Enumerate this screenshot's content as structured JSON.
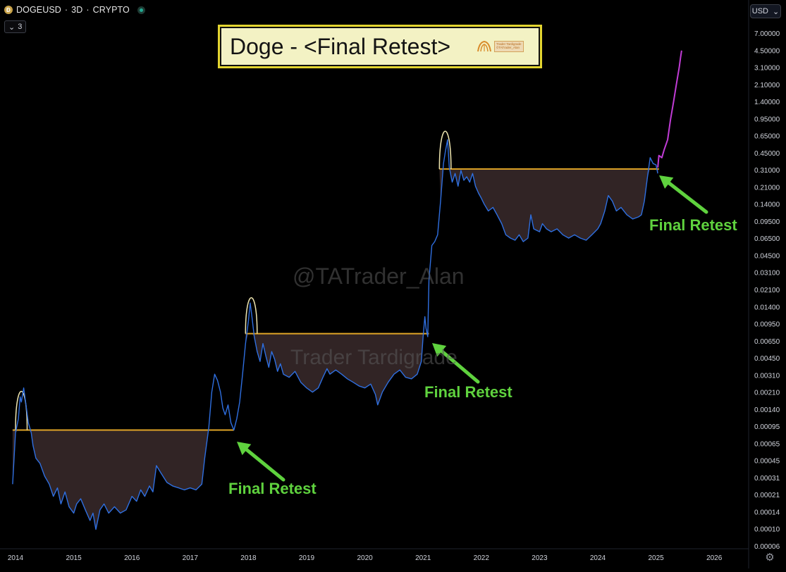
{
  "header": {
    "coin_glyph": "Ð",
    "symbol": "DOGEUSD",
    "separator": "·",
    "interval": "3D",
    "market": "CRYPTO",
    "status_color": "#22ab94",
    "indicator_toggle_icon": "chevron-down-icon",
    "indicator_toggle_glyph": "⌄",
    "indicator_count": "3"
  },
  "currency_selector": {
    "label": "USD",
    "icon": "chevron-down-icon",
    "glyph": "⌄"
  },
  "settings": {
    "icon": "gear-icon",
    "glyph": "⚙"
  },
  "title_box": {
    "text": "Doge - <Final Retest>",
    "background": "#f3f2c4",
    "border": "#e3d530",
    "logo_line1": "Trader Tardigrade",
    "logo_line2": "©TATrader_Alan"
  },
  "watermarks": {
    "main": "@TATrader_Alan",
    "secondary": "Trader Tardigrade"
  },
  "colors": {
    "price_line": "#2f6fe0",
    "projection_line": "#c13cd6",
    "neckline": "#e0a526",
    "cup_fill": "#3a2a2b",
    "peak_arc": "#efe6b0",
    "annotation": "#5fd23e"
  },
  "chart_data": {
    "type": "line",
    "title": "Doge - <Final Retest>",
    "xlabel": "",
    "ylabel": "",
    "y_scale": "log",
    "legend": "none",
    "grid": false,
    "y_ticks": [
      "7.00000",
      "4.50000",
      "3.10000",
      "2.10000",
      "1.40000",
      "0.95000",
      "0.65000",
      "0.45000",
      "0.31000",
      "0.21000",
      "0.14000",
      "0.09500",
      "0.06500",
      "0.04500",
      "0.03100",
      "0.02100",
      "0.01400",
      "0.00950",
      "0.00650",
      "0.00450",
      "0.00310",
      "0.00210",
      "0.00140",
      "0.00095",
      "0.00065",
      "0.00045",
      "0.00031",
      "0.00021",
      "0.00014",
      "0.00010",
      "0.00006"
    ],
    "x_ticks": [
      "2014",
      "2015",
      "2016",
      "2017",
      "2018",
      "2019",
      "2020",
      "2021",
      "2022",
      "2023",
      "2024",
      "2025",
      "2026"
    ],
    "xlim": [
      2014.0,
      2026.7
    ],
    "ylim": [
      6e-05,
      7.0
    ],
    "series": [
      {
        "kind": "price",
        "points": [
          [
            2013.95,
            0.00025
          ],
          [
            2014.0,
            0.0008
          ],
          [
            2014.05,
            0.0011
          ],
          [
            2014.08,
            0.0018
          ],
          [
            2014.1,
            0.0016
          ],
          [
            2014.14,
            0.0022
          ],
          [
            2014.18,
            0.0015
          ],
          [
            2014.22,
            0.001
          ],
          [
            2014.27,
            0.0008
          ],
          [
            2014.3,
            0.0006
          ],
          [
            2014.35,
            0.00045
          ],
          [
            2014.42,
            0.0004
          ],
          [
            2014.5,
            0.0003
          ],
          [
            2014.58,
            0.00025
          ],
          [
            2014.65,
            0.00019
          ],
          [
            2014.72,
            0.00023
          ],
          [
            2014.78,
            0.00016
          ],
          [
            2014.85,
            0.00021
          ],
          [
            2014.92,
            0.00015
          ],
          [
            2015.0,
            0.00013
          ],
          [
            2015.05,
            0.00016
          ],
          [
            2015.12,
            0.00018
          ],
          [
            2015.2,
            0.00014
          ],
          [
            2015.28,
            0.00011
          ],
          [
            2015.33,
            0.00013
          ],
          [
            2015.38,
            9e-05
          ],
          [
            2015.45,
            0.00014
          ],
          [
            2015.52,
            0.00016
          ],
          [
            2015.6,
            0.00013
          ],
          [
            2015.7,
            0.00015
          ],
          [
            2015.8,
            0.00013
          ],
          [
            2015.9,
            0.00014
          ],
          [
            2016.0,
            0.00019
          ],
          [
            2016.08,
            0.00017
          ],
          [
            2016.15,
            0.00022
          ],
          [
            2016.22,
            0.00019
          ],
          [
            2016.3,
            0.00024
          ],
          [
            2016.36,
            0.00021
          ],
          [
            2016.42,
            0.00038
          ],
          [
            2016.5,
            0.00032
          ],
          [
            2016.6,
            0.00026
          ],
          [
            2016.7,
            0.00024
          ],
          [
            2016.8,
            0.00023
          ],
          [
            2016.9,
            0.00022
          ],
          [
            2017.0,
            0.00023
          ],
          [
            2017.1,
            0.00022
          ],
          [
            2017.2,
            0.00025
          ],
          [
            2017.25,
            0.00045
          ],
          [
            2017.32,
            0.0009
          ],
          [
            2017.37,
            0.002
          ],
          [
            2017.42,
            0.003
          ],
          [
            2017.47,
            0.0026
          ],
          [
            2017.52,
            0.002
          ],
          [
            2017.56,
            0.0014
          ],
          [
            2017.6,
            0.0012
          ],
          [
            2017.65,
            0.0015
          ],
          [
            2017.7,
            0.001
          ],
          [
            2017.75,
            0.00085
          ],
          [
            2017.8,
            0.0011
          ],
          [
            2017.85,
            0.0016
          ],
          [
            2017.9,
            0.003
          ],
          [
            2017.95,
            0.006
          ],
          [
            2018.0,
            0.01
          ],
          [
            2018.03,
            0.015
          ],
          [
            2018.06,
            0.011
          ],
          [
            2018.1,
            0.007
          ],
          [
            2018.15,
            0.005
          ],
          [
            2018.2,
            0.004
          ],
          [
            2018.25,
            0.006
          ],
          [
            2018.3,
            0.0045
          ],
          [
            2018.35,
            0.0035
          ],
          [
            2018.4,
            0.005
          ],
          [
            2018.45,
            0.0042
          ],
          [
            2018.5,
            0.0032
          ],
          [
            2018.55,
            0.0038
          ],
          [
            2018.6,
            0.003
          ],
          [
            2018.7,
            0.0028
          ],
          [
            2018.8,
            0.0032
          ],
          [
            2018.9,
            0.0025
          ],
          [
            2019.0,
            0.0022
          ],
          [
            2019.1,
            0.002
          ],
          [
            2019.2,
            0.0022
          ],
          [
            2019.28,
            0.0028
          ],
          [
            2019.35,
            0.0034
          ],
          [
            2019.4,
            0.003
          ],
          [
            2019.5,
            0.0033
          ],
          [
            2019.6,
            0.003
          ],
          [
            2019.7,
            0.0027
          ],
          [
            2019.8,
            0.0025
          ],
          [
            2019.9,
            0.0023
          ],
          [
            2020.0,
            0.0022
          ],
          [
            2020.1,
            0.0024
          ],
          [
            2020.18,
            0.0019
          ],
          [
            2020.22,
            0.0015
          ],
          [
            2020.3,
            0.002
          ],
          [
            2020.4,
            0.0025
          ],
          [
            2020.5,
            0.003
          ],
          [
            2020.6,
            0.0033
          ],
          [
            2020.7,
            0.0028
          ],
          [
            2020.8,
            0.0027
          ],
          [
            2020.9,
            0.003
          ],
          [
            2020.97,
            0.004
          ],
          [
            2021.0,
            0.007
          ],
          [
            2021.03,
            0.011
          ],
          [
            2021.05,
            0.0085
          ],
          [
            2021.08,
            0.007
          ],
          [
            2021.1,
            0.025
          ],
          [
            2021.15,
            0.055
          ],
          [
            2021.2,
            0.06
          ],
          [
            2021.25,
            0.07
          ],
          [
            2021.3,
            0.15
          ],
          [
            2021.35,
            0.35
          ],
          [
            2021.38,
            0.45
          ],
          [
            2021.42,
            0.6
          ],
          [
            2021.45,
            0.32
          ],
          [
            2021.5,
            0.23
          ],
          [
            2021.55,
            0.28
          ],
          [
            2021.6,
            0.21
          ],
          [
            2021.65,
            0.3
          ],
          [
            2021.7,
            0.24
          ],
          [
            2021.75,
            0.26
          ],
          [
            2021.8,
            0.23
          ],
          [
            2021.85,
            0.28
          ],
          [
            2021.9,
            0.21
          ],
          [
            2021.95,
            0.18
          ],
          [
            2022.0,
            0.16
          ],
          [
            2022.05,
            0.14
          ],
          [
            2022.12,
            0.12
          ],
          [
            2022.2,
            0.13
          ],
          [
            2022.27,
            0.11
          ],
          [
            2022.35,
            0.09
          ],
          [
            2022.42,
            0.07
          ],
          [
            2022.5,
            0.065
          ],
          [
            2022.58,
            0.062
          ],
          [
            2022.65,
            0.07
          ],
          [
            2022.72,
            0.06
          ],
          [
            2022.8,
            0.065
          ],
          [
            2022.85,
            0.11
          ],
          [
            2022.9,
            0.08
          ],
          [
            2023.0,
            0.075
          ],
          [
            2023.05,
            0.09
          ],
          [
            2023.12,
            0.08
          ],
          [
            2023.2,
            0.075
          ],
          [
            2023.3,
            0.08
          ],
          [
            2023.4,
            0.07
          ],
          [
            2023.5,
            0.065
          ],
          [
            2023.6,
            0.07
          ],
          [
            2023.7,
            0.065
          ],
          [
            2023.8,
            0.062
          ],
          [
            2023.9,
            0.07
          ],
          [
            2024.0,
            0.08
          ],
          [
            2024.05,
            0.09
          ],
          [
            2024.12,
            0.12
          ],
          [
            2024.18,
            0.17
          ],
          [
            2024.25,
            0.15
          ],
          [
            2024.32,
            0.12
          ],
          [
            2024.4,
            0.13
          ],
          [
            2024.5,
            0.11
          ],
          [
            2024.6,
            0.1
          ],
          [
            2024.7,
            0.105
          ],
          [
            2024.75,
            0.11
          ],
          [
            2024.8,
            0.15
          ],
          [
            2024.85,
            0.25
          ],
          [
            2024.9,
            0.4
          ],
          [
            2024.95,
            0.35
          ],
          [
            2025.0,
            0.34
          ],
          [
            2025.03,
            0.28
          ]
        ]
      },
      {
        "kind": "projection",
        "points": [
          [
            2025.03,
            0.32
          ],
          [
            2025.05,
            0.42
          ],
          [
            2025.1,
            0.4
          ],
          [
            2025.14,
            0.48
          ],
          [
            2025.2,
            0.6
          ],
          [
            2025.25,
            0.95
          ],
          [
            2025.3,
            1.4
          ],
          [
            2025.35,
            2.1
          ],
          [
            2025.4,
            3.1
          ],
          [
            2025.42,
            3.8
          ],
          [
            2025.44,
            4.5
          ]
        ]
      }
    ],
    "cycles": [
      {
        "neckline_price": 0.00085,
        "neckline_start": 2013.95,
        "neckline_end": 2017.75,
        "peak_start": 2014.0,
        "peak_end": 2014.2,
        "peak_price": 0.0024
      },
      {
        "neckline_price": 0.0075,
        "neckline_start": 2017.95,
        "neckline_end": 2021.1,
        "peak_start": 2017.95,
        "peak_end": 2018.15,
        "peak_price": 0.0195
      },
      {
        "neckline_price": 0.31,
        "neckline_start": 2021.28,
        "neckline_end": 2025.05,
        "peak_start": 2021.28,
        "peak_end": 2021.48,
        "peak_price": 0.85
      }
    ],
    "annotations": [
      {
        "text": "Final Retest",
        "x": 2017.5,
        "y": 0.00042
      },
      {
        "text": "Final Retest",
        "x": 2021.0,
        "y": 0.002
      },
      {
        "text": "Final Retest",
        "x": 2024.85,
        "y": 0.095
      }
    ]
  }
}
